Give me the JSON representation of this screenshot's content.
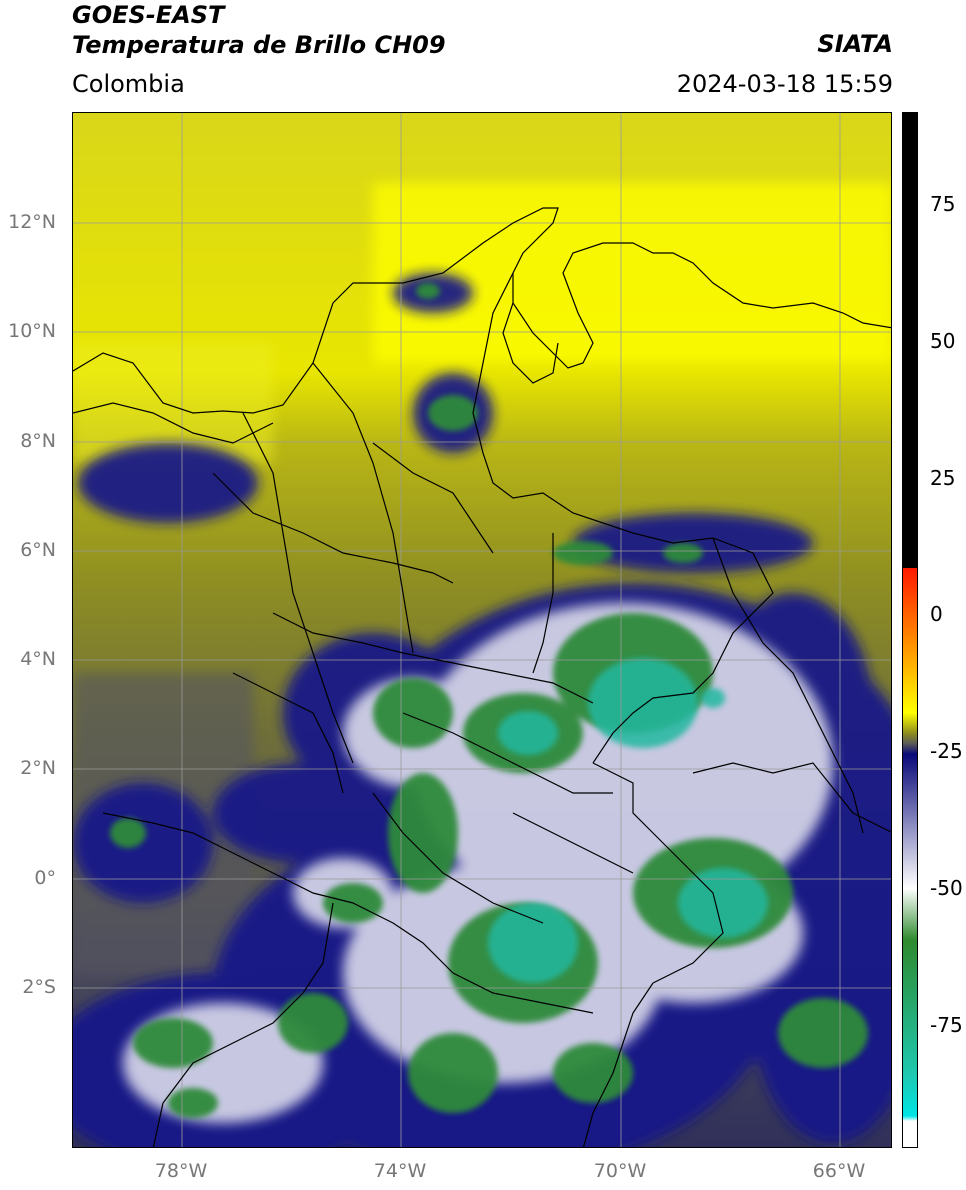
{
  "header": {
    "title_line1": "GOES-EAST",
    "title_line2": "Temperatura de Brillo CH09",
    "region": "Colombia",
    "organization": "SIATA",
    "datetime": "2024-03-18 15:59"
  },
  "map": {
    "lat_ticks": [
      "12°N",
      "10°N",
      "8°N",
      "6°N",
      "4°N",
      "2°N",
      "0°",
      "2°S"
    ],
    "lon_ticks": [
      "78°W",
      "74°W",
      "70°W",
      "66°W"
    ],
    "grid": true
  },
  "colorbar": {
    "labels": [
      "75",
      "50",
      "25",
      "0",
      "-25",
      "-50",
      "-75"
    ],
    "colors": {
      "black": "#000000",
      "red": "#ff1a00",
      "orange": "#ff9a00",
      "yellow": "#ffff00",
      "olive": "#8d8d1f",
      "gray": "#5a5a5a",
      "navy": "#0a0a7a",
      "white": "#ffffff",
      "green": "#2e8a2e",
      "teal": "#1ec8b0",
      "cyan": "#00e5e5"
    }
  }
}
